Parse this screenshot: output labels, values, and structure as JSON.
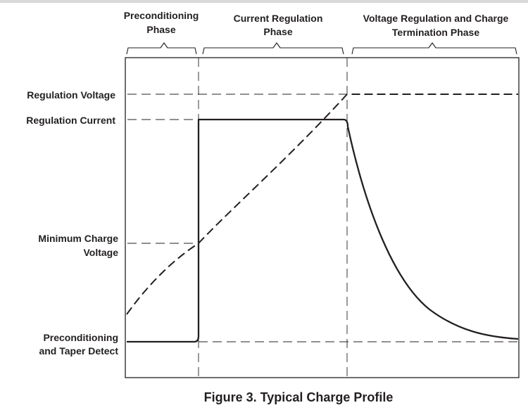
{
  "phases": [
    {
      "line1": "Preconditioning",
      "line2": "Phase"
    },
    {
      "line1": "Current Regulation",
      "line2": "Phase"
    },
    {
      "line1": "Voltage Regulation and Charge",
      "line2": "Termination Phase"
    }
  ],
  "levels": {
    "regulation_voltage": "Regulation Voltage",
    "regulation_current": "Regulation Current",
    "min_charge_line1": "Minimum Charge",
    "min_charge_line2": "Voltage",
    "precond_line1": "Preconditioning",
    "precond_line2": "and Taper Detect"
  },
  "caption": "Figure 3. Typical Charge Profile",
  "colors": {
    "ink": "#231f20",
    "background": "#ffffff",
    "top_rule": "#d9d9d9"
  }
}
